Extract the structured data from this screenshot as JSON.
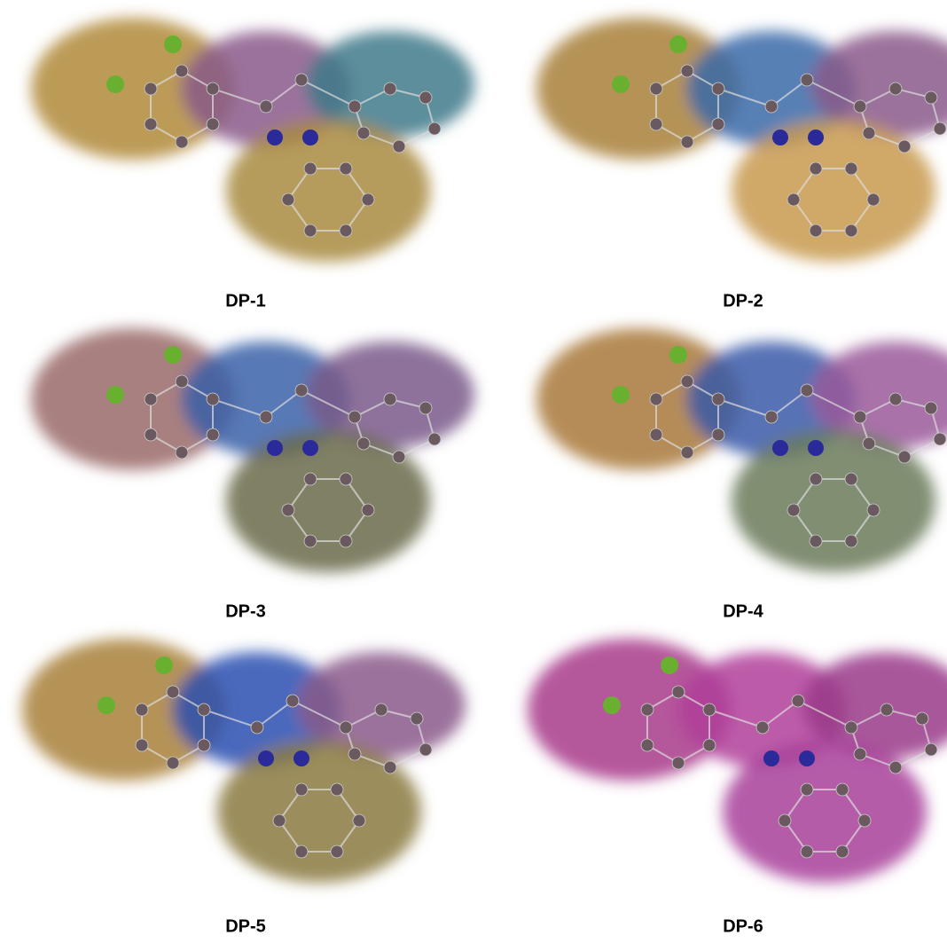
{
  "panels": [
    {
      "label": "DP-1"
    },
    {
      "label": "DP-2"
    },
    {
      "label": "DP-3"
    },
    {
      "label": "DP-4"
    },
    {
      "label": "DP-5"
    },
    {
      "label": "DP-6"
    }
  ]
}
